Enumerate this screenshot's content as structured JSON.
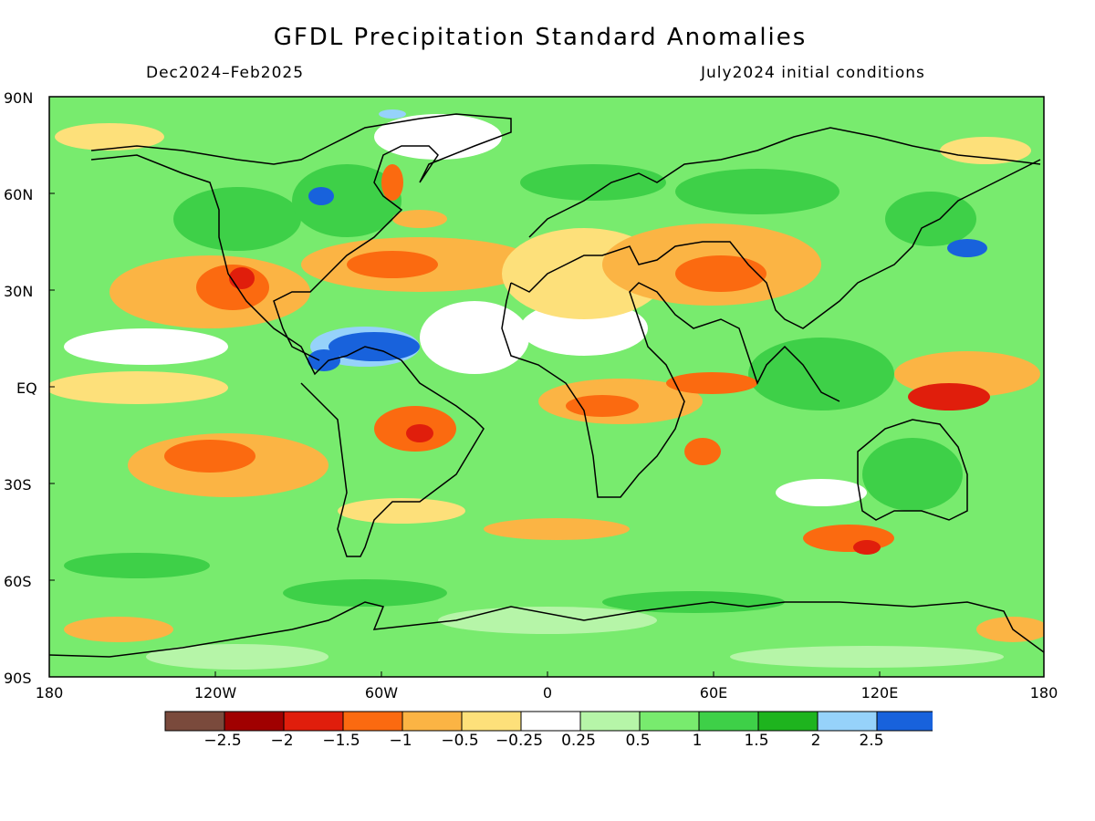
{
  "title": "GFDL Precipitation Standard Anomalies",
  "subtitle_left": "Dec2024–Feb2025",
  "subtitle_right": "July2024 initial conditions",
  "lat_labels": [
    "90N",
    "60N",
    "30N",
    "EQ",
    "30S",
    "60S",
    "90S"
  ],
  "lon_labels": [
    "180",
    "120W",
    "60W",
    "0",
    "60E",
    "120E",
    "180"
  ],
  "colorbar": {
    "colors": [
      "#7a4a3c",
      "#a00000",
      "#e01e0c",
      "#fb6a10",
      "#fbb444",
      "#fde07a",
      "#ffffff",
      "#b6f5a8",
      "#78eb6e",
      "#3ed048",
      "#1eb41e",
      "#96d2fa",
      "#1862dc"
    ],
    "tick_labels": [
      "−2.5",
      "−2",
      "−1.5",
      "−1",
      "−0.5",
      "−0.25",
      "0.25",
      "0.5",
      "1",
      "1.5",
      "2",
      "2.5"
    ]
  }
}
